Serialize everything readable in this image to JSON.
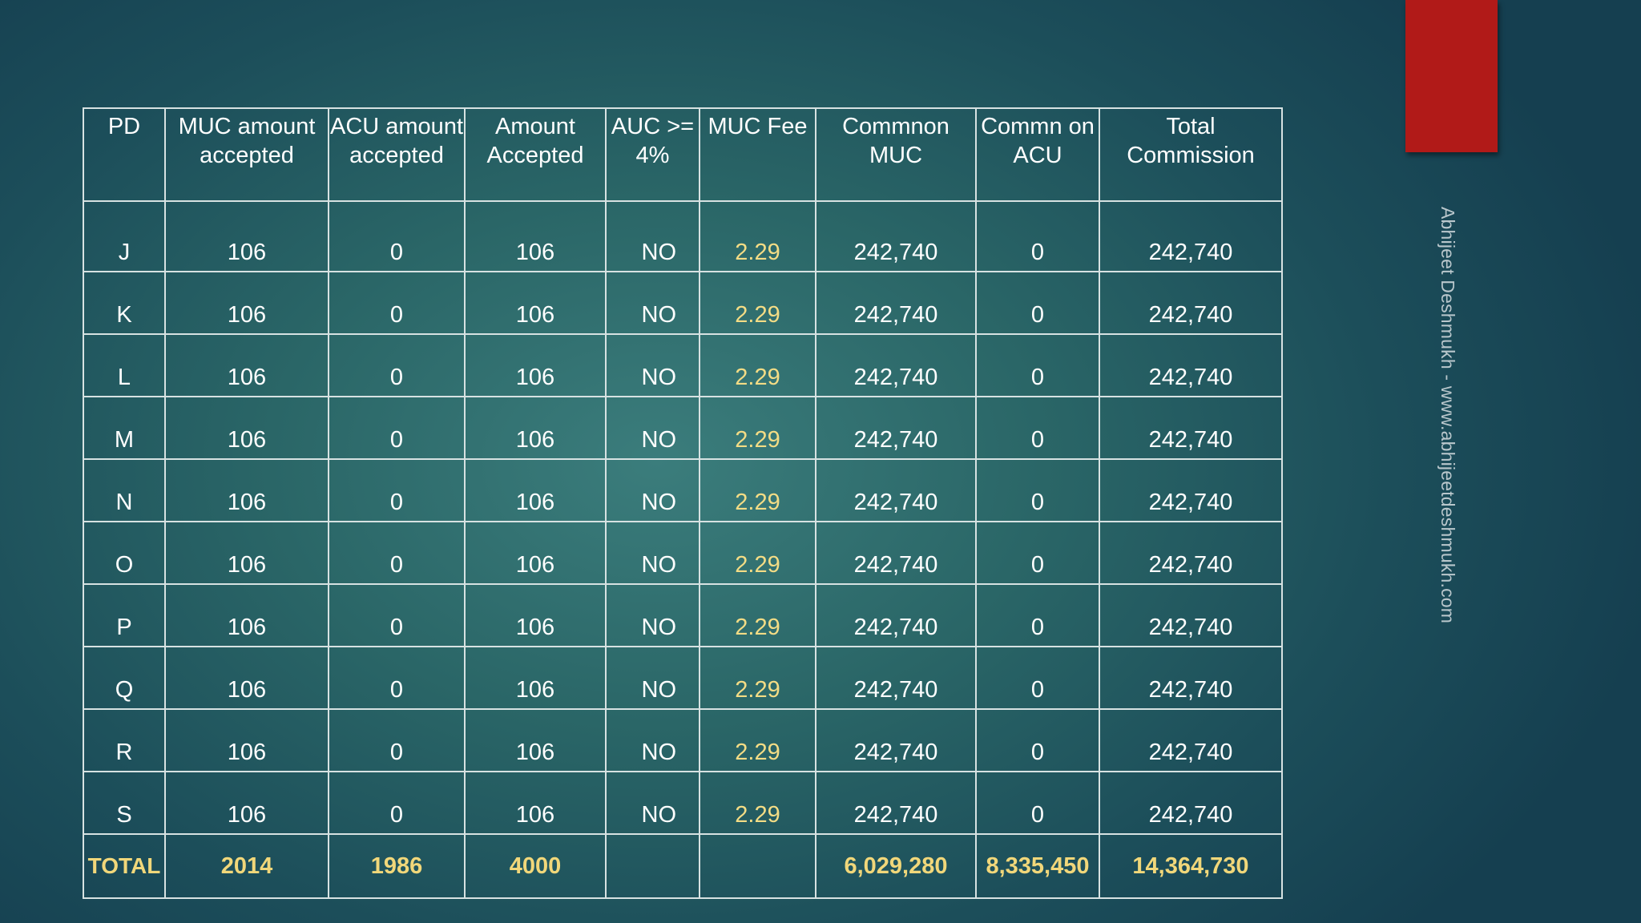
{
  "table": {
    "headers": [
      "PD",
      "MUC amount accepted",
      "ACU amount accepted",
      "Amount Accepted",
      "AUC >= 4%",
      "MUC Fee",
      "Commnon MUC",
      "Commn on ACU",
      "Total Commission"
    ],
    "rows": [
      {
        "pd": "J",
        "muc_amount": "106",
        "acu_amount": "0",
        "amount_accepted": "106",
        "auc_4": "NO",
        "muc_fee": "2.29",
        "comm_muc": "242,740",
        "comm_acu": "0",
        "total_commission": "242,740"
      },
      {
        "pd": "K",
        "muc_amount": "106",
        "acu_amount": "0",
        "amount_accepted": "106",
        "auc_4": "NO",
        "muc_fee": "2.29",
        "comm_muc": "242,740",
        "comm_acu": "0",
        "total_commission": "242,740"
      },
      {
        "pd": "L",
        "muc_amount": "106",
        "acu_amount": "0",
        "amount_accepted": "106",
        "auc_4": "NO",
        "muc_fee": "2.29",
        "comm_muc": "242,740",
        "comm_acu": "0",
        "total_commission": "242,740"
      },
      {
        "pd": "M",
        "muc_amount": "106",
        "acu_amount": "0",
        "amount_accepted": "106",
        "auc_4": "NO",
        "muc_fee": "2.29",
        "comm_muc": "242,740",
        "comm_acu": "0",
        "total_commission": "242,740"
      },
      {
        "pd": "N",
        "muc_amount": "106",
        "acu_amount": "0",
        "amount_accepted": "106",
        "auc_4": "NO",
        "muc_fee": "2.29",
        "comm_muc": "242,740",
        "comm_acu": "0",
        "total_commission": "242,740"
      },
      {
        "pd": "O",
        "muc_amount": "106",
        "acu_amount": "0",
        "amount_accepted": "106",
        "auc_4": "NO",
        "muc_fee": "2.29",
        "comm_muc": "242,740",
        "comm_acu": "0",
        "total_commission": "242,740"
      },
      {
        "pd": "P",
        "muc_amount": "106",
        "acu_amount": "0",
        "amount_accepted": "106",
        "auc_4": "NO",
        "muc_fee": "2.29",
        "comm_muc": "242,740",
        "comm_acu": "0",
        "total_commission": "242,740"
      },
      {
        "pd": "Q",
        "muc_amount": "106",
        "acu_amount": "0",
        "amount_accepted": "106",
        "auc_4": "NO",
        "muc_fee": "2.29",
        "comm_muc": "242,740",
        "comm_acu": "0",
        "total_commission": "242,740"
      },
      {
        "pd": "R",
        "muc_amount": "106",
        "acu_amount": "0",
        "amount_accepted": "106",
        "auc_4": "NO",
        "muc_fee": "2.29",
        "comm_muc": "242,740",
        "comm_acu": "0",
        "total_commission": "242,740"
      },
      {
        "pd": "S",
        "muc_amount": "106",
        "acu_amount": "0",
        "amount_accepted": "106",
        "auc_4": "NO",
        "muc_fee": "2.29",
        "comm_muc": "242,740",
        "comm_acu": "0",
        "total_commission": "242,740"
      }
    ],
    "total": {
      "pd": "TOTAL",
      "muc_amount": "2014",
      "acu_amount": "1986",
      "amount_accepted": "4000",
      "auc_4": "",
      "muc_fee": "",
      "comm_muc": "6,029,280",
      "comm_acu": "8,335,450",
      "total_commission": "14,364,730"
    }
  },
  "side_credit": "Abhijeet Deshmukh - www.abhijeetdeshmukh.com",
  "colors": {
    "accent_bar": "#b11a18",
    "highlight_text": "#f1d77a",
    "grid_lines": "#d7e2e2"
  }
}
